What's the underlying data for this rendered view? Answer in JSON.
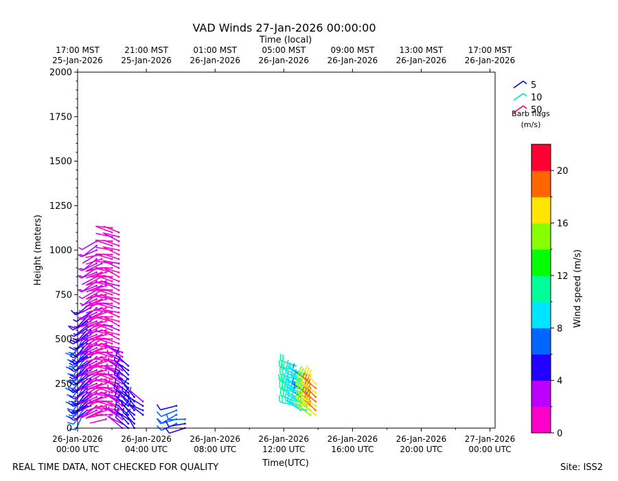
{
  "chart_data": {
    "type": "wind-barb",
    "title": "VAD Winds 27-Jan-2026 00:00:00",
    "top_axis_label": "Time (local)",
    "top_ticks": [
      {
        "hour": -7,
        "line1": "17:00 MST",
        "line2": "25-Jan-2026"
      },
      {
        "hour": -3,
        "line1": "21:00 MST",
        "line2": "25-Jan-2026"
      },
      {
        "hour": 1,
        "line1": "01:00 MST",
        "line2": "26-Jan-2026"
      },
      {
        "hour": 5,
        "line1": "05:00 MST",
        "line2": "26-Jan-2026"
      },
      {
        "hour": 9,
        "line1": "09:00 MST",
        "line2": "26-Jan-2026"
      },
      {
        "hour": 13,
        "line1": "13:00 MST",
        "line2": "26-Jan-2026"
      },
      {
        "hour": 17,
        "line1": "17:00 MST",
        "line2": "26-Jan-2026"
      }
    ],
    "xlabel": "Time(UTC)",
    "x_ticks": [
      {
        "hour": 0,
        "line1": "26-Jan-2026",
        "line2": "00:00 UTC"
      },
      {
        "hour": 4,
        "line1": "26-Jan-2026",
        "line2": "04:00 UTC"
      },
      {
        "hour": 8,
        "line1": "26-Jan-2026",
        "line2": "08:00 UTC"
      },
      {
        "hour": 12,
        "line1": "26-Jan-2026",
        "line2": "12:00 UTC"
      },
      {
        "hour": 16,
        "line1": "26-Jan-2026",
        "line2": "16:00 UTC"
      },
      {
        "hour": 20,
        "line1": "26-Jan-2026",
        "line2": "20:00 UTC"
      },
      {
        "hour": 24,
        "line1": "27-Jan-2026",
        "line2": "00:00 UTC"
      }
    ],
    "xlim_hours": [
      0,
      24.3
    ],
    "ylabel": "Height (meters)",
    "ylim": [
      0,
      2000
    ],
    "y_ticks": [
      0,
      250,
      500,
      750,
      1000,
      1250,
      1500,
      1750,
      2000
    ],
    "legend": {
      "items": [
        {
          "label": "5",
          "color": "#0000ff"
        },
        {
          "label": "10",
          "color": "#00e0a0"
        },
        {
          "label": "50",
          "color": "#ff0040"
        }
      ],
      "note1": "Barb flags",
      "note2": "(m/s)"
    },
    "colorbar": {
      "label": "Wind speed (m/s)",
      "range": [
        0,
        22
      ],
      "ticks": [
        0,
        4,
        8,
        12,
        16,
        20
      ],
      "colors": [
        "#ff00c8",
        "#bb00ff",
        "#2200ff",
        "#0066ff",
        "#00e5ff",
        "#00ff99",
        "#00ff00",
        "#88ff00",
        "#ffe500",
        "#ff6600",
        "#ff0033"
      ]
    },
    "series": [
      {
        "hour": 0.3,
        "hmin": 60,
        "hmax": 520,
        "speed": 7,
        "dir": 215
      },
      {
        "hour": 0.55,
        "hmin": 80,
        "hmax": 640,
        "speed": 5,
        "dir": 230
      },
      {
        "hour": 0.75,
        "hmin": 100,
        "hmax": 720,
        "speed": 4.5,
        "dir": 235
      },
      {
        "hour": 1.1,
        "hmin": 100,
        "hmax": 1060,
        "speed": 3.0,
        "dir": 240
      },
      {
        "hour": 1.4,
        "hmin": 60,
        "hmax": 980,
        "speed": 1.5,
        "dir": 250
      },
      {
        "hour": 1.65,
        "hmin": 40,
        "hmax": 900,
        "speed": 1.2,
        "dir": 260
      },
      {
        "hour": 2.0,
        "hmin": 60,
        "hmax": 1140,
        "speed": 1.0,
        "dir": 280
      },
      {
        "hour": 2.4,
        "hmin": 60,
        "hmax": 1100,
        "speed": 1.5,
        "dir": 290
      },
      {
        "hour": 2.6,
        "hmin": 0,
        "hmax": 430,
        "speed": 2.5,
        "dir": 300
      },
      {
        "hour": 2.95,
        "hmin": 0,
        "hmax": 370,
        "speed": 5,
        "dir": 310
      },
      {
        "hour": 3.3,
        "hmin": 0,
        "hmax": 190,
        "speed": 5,
        "dir": 320
      },
      {
        "hour": 3.8,
        "hmin": 60,
        "hmax": 170,
        "speed": 4.5,
        "dir": 300
      },
      {
        "hour": 5.75,
        "hmin": 20,
        "hmax": 140,
        "speed": 6.5,
        "dir": 250
      },
      {
        "hour": 6.25,
        "hmin": 0,
        "hmax": 60,
        "speed": 5.5,
        "dir": 260
      },
      {
        "hour": 12.7,
        "hmin": 120,
        "hmax": 370,
        "speed": 11,
        "dir": 290
      },
      {
        "hour": 13.0,
        "hmin": 100,
        "hmax": 320,
        "speed": 9,
        "dir": 295
      },
      {
        "hour": 13.3,
        "hmin": 80,
        "hmax": 300,
        "speed": 8,
        "dir": 300
      },
      {
        "hour": 13.55,
        "hmin": 60,
        "hmax": 270,
        "speed": 15,
        "dir": 305
      },
      {
        "hour": 13.85,
        "hmin": 60,
        "hmax": 250,
        "speed": 18,
        "dir": 310
      }
    ]
  },
  "footer_left": "REAL TIME DATA, NOT CHECKED FOR QUALITY",
  "footer_right": "Site: ISS2"
}
